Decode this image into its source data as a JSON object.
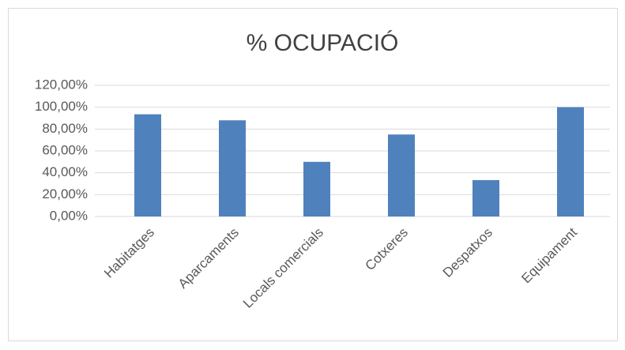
{
  "chart_data": {
    "type": "bar",
    "title": "% OCUPACIÓ",
    "categories": [
      "Habitatges",
      "Aparcaments",
      "Locals comercials",
      "Cotxeres",
      "Despatxos",
      "Equipament"
    ],
    "values": [
      93.5,
      88,
      50,
      75,
      33.3,
      100
    ],
    "color": "#4f81bd",
    "ylim": [
      0,
      120
    ],
    "yticks": [
      {
        "value": 0,
        "label": "0,00%"
      },
      {
        "value": 20,
        "label": "20,00%"
      },
      {
        "value": 40,
        "label": "40,00%"
      },
      {
        "value": 60,
        "label": "60,00%"
      },
      {
        "value": 80,
        "label": "80,00%"
      },
      {
        "value": 100,
        "label": "100,00%"
      },
      {
        "value": 120,
        "label": "120,00%"
      }
    ],
    "grid": true
  }
}
